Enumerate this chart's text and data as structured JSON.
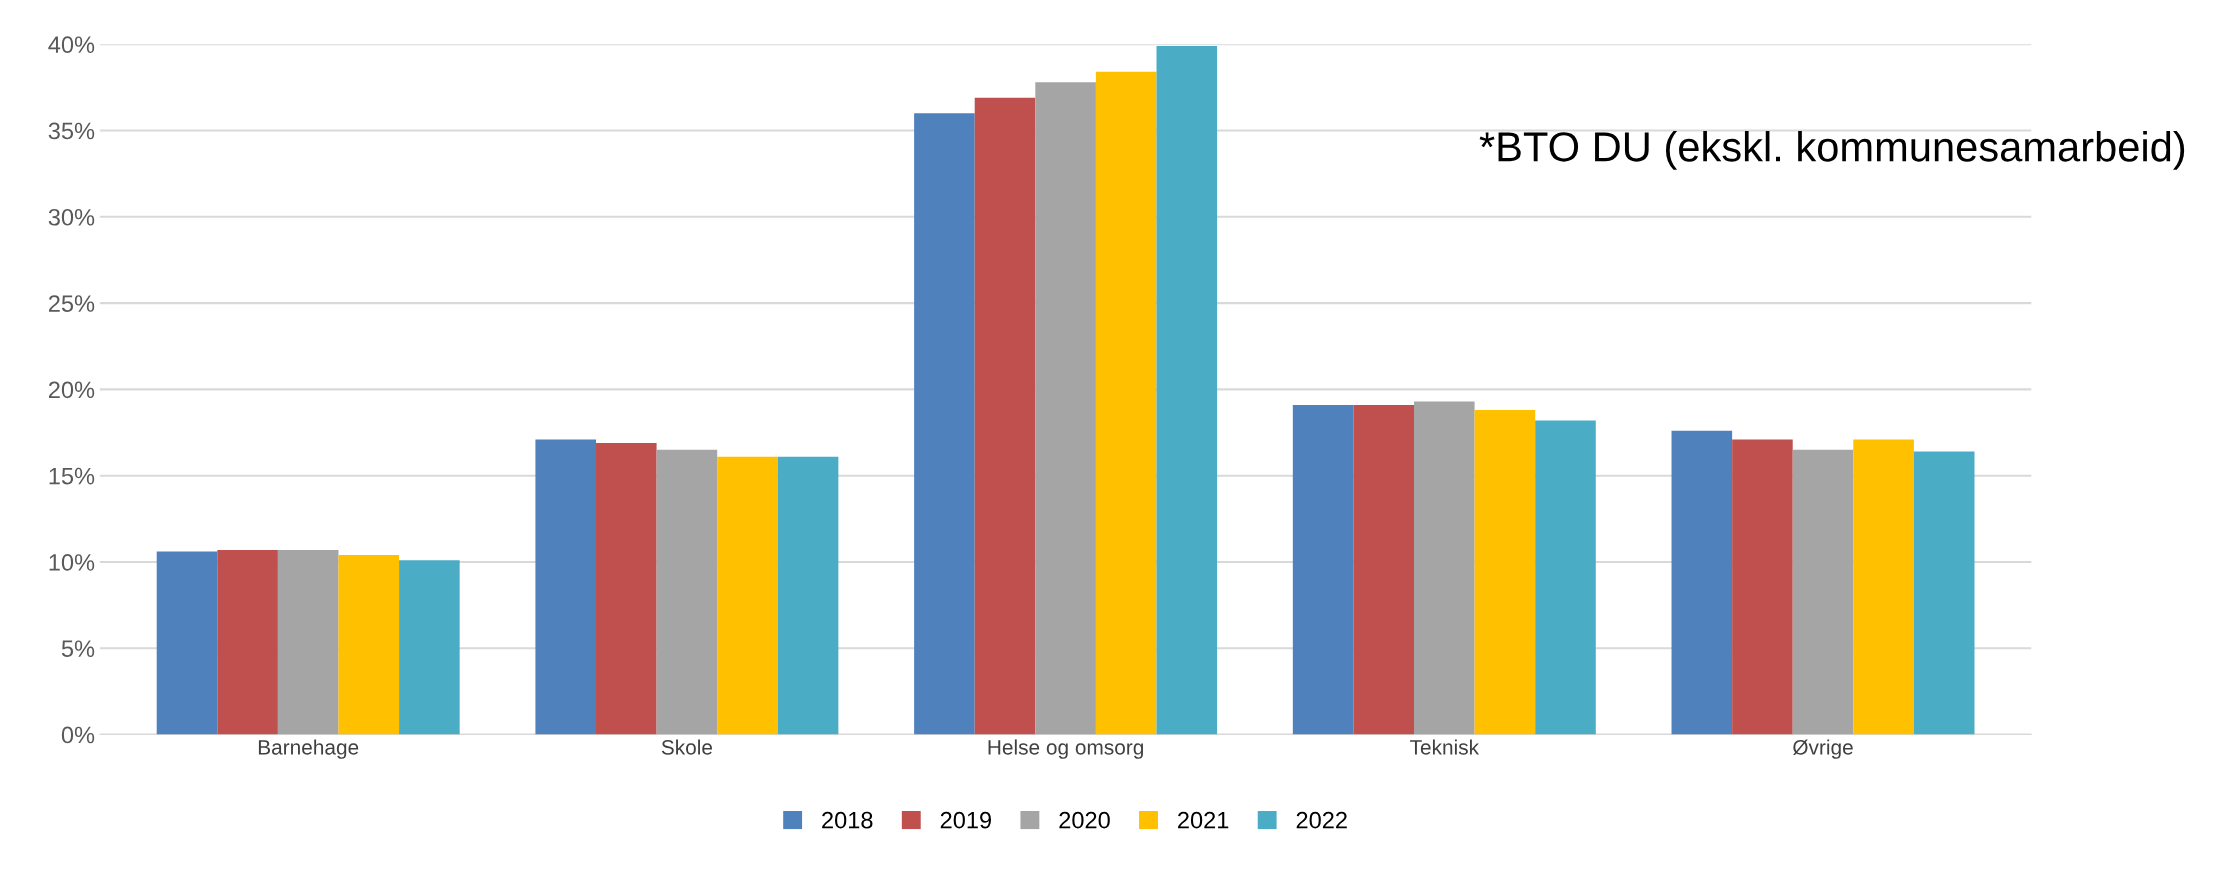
{
  "chart_data": {
    "type": "bar",
    "categories": [
      "Barnehage",
      "Skole",
      "Helse og omsorg",
      "Teknisk",
      "Øvrige"
    ],
    "series": [
      {
        "name": "2018",
        "color": "#4f81bd",
        "values": [
          10.6,
          17.1,
          36.0,
          19.1,
          17.6
        ]
      },
      {
        "name": "2019",
        "color": "#c0504d",
        "values": [
          10.7,
          16.9,
          36.9,
          19.1,
          17.1
        ]
      },
      {
        "name": "2020",
        "color": "#a5a5a5",
        "values": [
          10.7,
          16.5,
          37.8,
          19.3,
          16.5
        ]
      },
      {
        "name": "2021",
        "color": "#ffc000",
        "values": [
          10.4,
          16.1,
          38.4,
          18.8,
          17.1
        ]
      },
      {
        "name": "2022",
        "color": "#4bacc6",
        "values": [
          10.1,
          16.1,
          39.9,
          18.2,
          16.4
        ]
      }
    ],
    "ylim": [
      0,
      40
    ],
    "yticks": [
      {
        "value": 0,
        "label": "0%"
      },
      {
        "value": 5,
        "label": "5%"
      },
      {
        "value": 10,
        "label": "10%"
      },
      {
        "value": 15,
        "label": "15%"
      },
      {
        "value": 20,
        "label": "20%"
      },
      {
        "value": 25,
        "label": "25%"
      },
      {
        "value": 30,
        "label": "30%"
      },
      {
        "value": 35,
        "label": "35%"
      },
      {
        "value": 40,
        "label": "40%"
      }
    ],
    "grid": "y",
    "legend": "bottom",
    "annotations": [
      "*BTO DU (ekskl. kommunesamarbeid)"
    ]
  }
}
